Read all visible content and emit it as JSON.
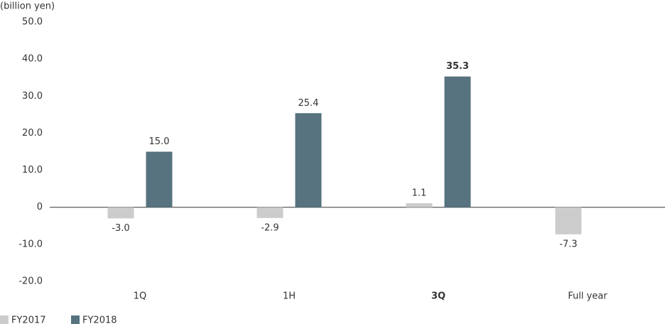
{
  "chart_data": {
    "type": "bar",
    "y_label": "(billion yen)",
    "categories": [
      "1Q",
      "1H",
      "3Q",
      "Full year"
    ],
    "series": [
      {
        "name": "FY2017",
        "color": "#cccccc",
        "values": [
          -3.0,
          -2.9,
          1.1,
          -7.3
        ],
        "value_labels": [
          "-3.0",
          "-2.9",
          "1.1",
          "-7.3"
        ]
      },
      {
        "name": "FY2018",
        "color": "#56737f",
        "values": [
          15.0,
          25.4,
          35.3,
          null
        ],
        "value_labels": [
          "15.0",
          "25.4",
          "35.3",
          null
        ]
      }
    ],
    "ylim": [
      -20,
      50
    ],
    "yticks": [
      {
        "value": -20,
        "label": "-20.0"
      },
      {
        "value": -10,
        "label": "-10.0"
      },
      0,
      {
        "value": 10,
        "label": "10.0"
      },
      {
        "value": 20,
        "label": "20.0"
      },
      {
        "value": 30,
        "label": "30.0"
      },
      {
        "value": 40,
        "label": "40.0"
      },
      {
        "value": 50,
        "label": "50.0"
      }
    ],
    "grid": false,
    "highlight_index": 2,
    "legend": "bottom-left"
  }
}
